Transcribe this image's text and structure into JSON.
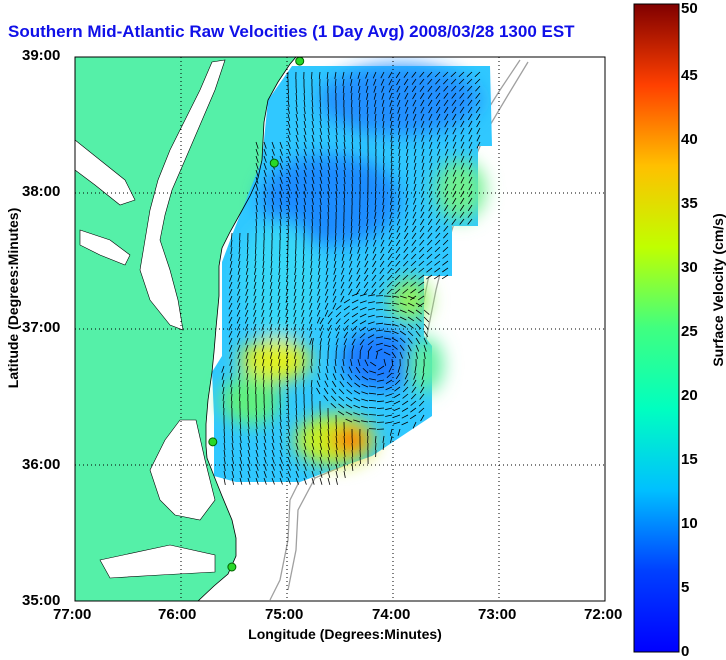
{
  "title": "Southern Mid-Atlantic Raw Velocities (1 Day Avg) 2008/03/28 1300 EST",
  "x_axis": {
    "label": "Longitude (Degrees:Minutes)",
    "ticks": [
      "77:00",
      "76:00",
      "75:00",
      "74:00",
      "73:00",
      "72:00"
    ]
  },
  "y_axis": {
    "label": "Latitude (Degrees:Minutes)",
    "ticks": [
      "39:00",
      "38:00",
      "37:00",
      "36:00",
      "35:00"
    ]
  },
  "colorbar": {
    "label": "Surface Velocity (cm/s)",
    "ticks": [
      "0",
      "5",
      "10",
      "15",
      "20",
      "25",
      "30",
      "35",
      "40",
      "45",
      "50"
    ],
    "min": 0,
    "max": 50,
    "colormap": "jet"
  },
  "colors": {
    "title": "#1010e8",
    "land": "#55f0a8",
    "bathymetry": "#a0a0a0",
    "station": "#28d828"
  },
  "map": {
    "lon_range": [
      -77,
      -72
    ],
    "lat_range": [
      35,
      39
    ],
    "grid": "dotted",
    "stations": [
      {
        "lon": -74.88,
        "lat": 38.97
      },
      {
        "lon": -75.12,
        "lat": 38.22
      },
      {
        "lon": -75.7,
        "lat": 36.17
      },
      {
        "lon": -75.52,
        "lat": 35.25
      }
    ]
  }
}
